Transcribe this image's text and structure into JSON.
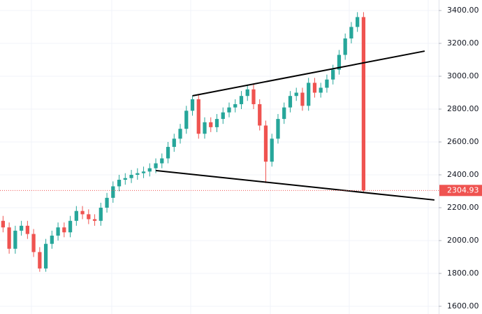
{
  "chart_data": {
    "type": "candlestick",
    "open": [
      2120,
      2080,
      1950,
      2060,
      2090,
      2040,
      1930,
      1830,
      1980,
      2030,
      2080,
      2050,
      2120,
      2180,
      2160,
      2130,
      2120,
      2200,
      2260,
      2330,
      2370,
      2380,
      2400,
      2410,
      2420,
      2440,
      2470,
      2500,
      2570,
      2620,
      2680,
      2790,
      2860,
      2650,
      2720,
      2690,
      2740,
      2780,
      2810,
      2830,
      2880,
      2920,
      2830,
      2700,
      2480,
      2620,
      2740,
      2810,
      2880,
      2900,
      2820,
      2960,
      2900,
      2930,
      2980,
      3040,
      3130,
      3230,
      3300,
      3360
    ],
    "high": [
      2150,
      2110,
      2090,
      2120,
      2120,
      2070,
      1960,
      2010,
      2060,
      2110,
      2110,
      2150,
      2210,
      2210,
      2190,
      2160,
      2230,
      2290,
      2360,
      2400,
      2410,
      2430,
      2440,
      2450,
      2470,
      2500,
      2530,
      2600,
      2650,
      2710,
      2820,
      2880,
      2890,
      2750,
      2750,
      2770,
      2810,
      2840,
      2860,
      2910,
      2950,
      2950,
      2860,
      2730,
      2650,
      2770,
      2840,
      2910,
      2930,
      2930,
      2990,
      2990,
      2960,
      3010,
      3070,
      3160,
      3260,
      3330,
      3390,
      3390
    ],
    "low": [
      2050,
      1920,
      1920,
      2030,
      2010,
      1900,
      1810,
      1810,
      1950,
      2000,
      2020,
      2020,
      2090,
      2130,
      2100,
      2090,
      2090,
      2170,
      2230,
      2300,
      2340,
      2350,
      2370,
      2380,
      2390,
      2410,
      2440,
      2470,
      2540,
      2590,
      2650,
      2760,
      2620,
      2620,
      2660,
      2660,
      2710,
      2750,
      2780,
      2800,
      2850,
      2800,
      2670,
      2350,
      2450,
      2590,
      2710,
      2780,
      2850,
      2790,
      2790,
      2870,
      2870,
      2900,
      2950,
      3010,
      3100,
      3200,
      3270,
      2290
    ],
    "close": [
      2080,
      1950,
      2060,
      2090,
      2040,
      1930,
      1830,
      1980,
      2030,
      2080,
      2050,
      2120,
      2180,
      2160,
      2130,
      2120,
      2200,
      2260,
      2330,
      2370,
      2380,
      2400,
      2410,
      2420,
      2440,
      2470,
      2500,
      2570,
      2620,
      2680,
      2790,
      2860,
      2650,
      2720,
      2690,
      2740,
      2780,
      2810,
      2830,
      2880,
      2920,
      2830,
      2700,
      2480,
      2620,
      2740,
      2810,
      2880,
      2900,
      2820,
      2960,
      2900,
      2930,
      2980,
      3040,
      3130,
      3230,
      3300,
      3360,
      2304.93
    ],
    "up_color": "#26a69a",
    "down_color": "#ef5350",
    "last_price": 2304.93,
    "last_price_color": "#ef5350",
    "trendlines": [
      {
        "x": [
          31,
          69
        ],
        "y": [
          2881,
          3153
        ],
        "color": "#000000"
      },
      {
        "x": [
          25,
          70.6
        ],
        "y": [
          2426,
          2247
        ],
        "color": "#000000"
      }
    ],
    "xlim": [
      -0.5,
      71.3
    ],
    "ylim": [
      1553,
      3464
    ],
    "yticks": [
      {
        "value": 1600,
        "label": "1600.00"
      },
      {
        "value": 1800,
        "label": "1800.00"
      },
      {
        "value": 2000,
        "label": "2000.00"
      },
      {
        "value": 2200,
        "label": "2200.00"
      },
      {
        "value": 2400,
        "label": "2400.00"
      },
      {
        "value": 2600,
        "label": "2600.00"
      },
      {
        "value": 2800,
        "label": "2800.00"
      },
      {
        "value": 3000,
        "label": "3000.00"
      },
      {
        "value": 3200,
        "label": "3200.00"
      },
      {
        "value": 3400,
        "label": "3400.00"
      }
    ],
    "grid": true
  }
}
